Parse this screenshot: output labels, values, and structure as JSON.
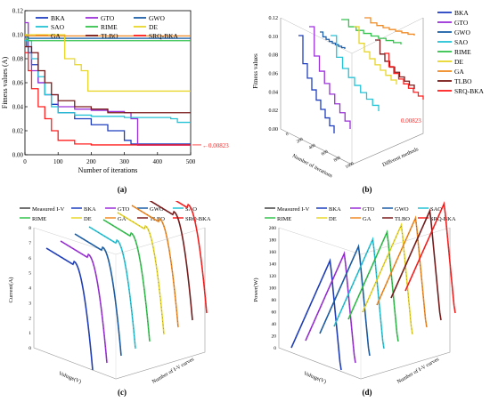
{
  "colors": {
    "BKA": "#1f3fbf",
    "GTO": "#9b30d9",
    "GWO": "#1c5fa8",
    "SAO": "#25c3d6",
    "RIME": "#33c24d",
    "DE": "#e8d62a",
    "GA": "#f08a24",
    "TLBO": "#7a1a1a",
    "SRQ-BKA": "#ff1f1f",
    "Measured I-V": "#555555"
  },
  "captions": {
    "a": "(a)",
    "b": "(b)",
    "c": "(c)",
    "d": "(d)"
  },
  "chart_data": [
    {
      "panel": "a",
      "type": "line",
      "xlabel": "Number of iterations",
      "ylabel": "Fitness values (A)",
      "xlim": [
        0,
        500
      ],
      "ylim": [
        0,
        0.12
      ],
      "xticks": [
        "0",
        "100",
        "200",
        "300",
        "400",
        "500"
      ],
      "yticks": [
        "0.00",
        "0.02",
        "0.04",
        "0.06",
        "0.08",
        "0.10",
        "0.12"
      ],
      "legend_position": "top-right",
      "annotation": "0.00823",
      "series": [
        {
          "name": "BKA",
          "x": [
            0,
            5,
            10,
            20,
            40,
            60,
            80,
            100,
            150,
            200,
            250,
            300,
            320,
            500
          ],
          "y": [
            0.098,
            0.09,
            0.085,
            0.075,
            0.06,
            0.05,
            0.042,
            0.035,
            0.03,
            0.025,
            0.02,
            0.012,
            0.009,
            0.009
          ]
        },
        {
          "name": "GTO",
          "x": [
            0,
            10,
            20,
            40,
            60,
            100,
            150,
            200,
            250,
            300,
            320,
            340,
            500
          ],
          "y": [
            0.11,
            0.09,
            0.07,
            0.06,
            0.05,
            0.04,
            0.038,
            0.037,
            0.036,
            0.035,
            0.03,
            0.008,
            0.008
          ]
        },
        {
          "name": "GWO",
          "x": [
            0,
            5,
            10,
            20,
            500
          ],
          "y": [
            0.1,
            0.098,
            0.097,
            0.097,
            0.097
          ]
        },
        {
          "name": "SAO",
          "x": [
            0,
            20,
            40,
            60,
            80,
            100,
            150,
            200,
            300,
            440,
            460,
            500
          ],
          "y": [
            0.095,
            0.08,
            0.065,
            0.05,
            0.04,
            0.035,
            0.033,
            0.032,
            0.031,
            0.03,
            0.027,
            0.027
          ]
        },
        {
          "name": "RIME",
          "x": [
            0,
            5,
            10,
            500
          ],
          "y": [
            0.1,
            0.096,
            0.095,
            0.095
          ]
        },
        {
          "name": "DE",
          "x": [
            0,
            100,
            120,
            150,
            170,
            190,
            500
          ],
          "y": [
            0.1,
            0.1,
            0.08,
            0.075,
            0.07,
            0.053,
            0.053
          ]
        },
        {
          "name": "GA",
          "x": [
            0,
            500
          ],
          "y": [
            0.099,
            0.099
          ]
        },
        {
          "name": "TLBO",
          "x": [
            0,
            20,
            40,
            60,
            80,
            100,
            150,
            200,
            250,
            500
          ],
          "y": [
            0.09,
            0.085,
            0.07,
            0.06,
            0.05,
            0.045,
            0.04,
            0.038,
            0.035,
            0.035
          ]
        },
        {
          "name": "SRQ-BKA",
          "x": [
            0,
            10,
            20,
            40,
            60,
            80,
            100,
            150,
            200,
            500
          ],
          "y": [
            0.085,
            0.07,
            0.055,
            0.04,
            0.03,
            0.02,
            0.012,
            0.009,
            0.0082,
            0.0082
          ]
        }
      ]
    },
    {
      "panel": "b",
      "type": "line",
      "ylabel": "Fitness values",
      "xlabel": "Number of iterations",
      "zlabel": "Different methods",
      "xticks": [
        "0",
        "200",
        "400",
        "600",
        "800",
        "1000"
      ],
      "yticks": [
        "0.00",
        "0.02",
        "0.04",
        "0.06",
        "0.08",
        "0.10",
        "0.12"
      ],
      "annotation": "0.00823",
      "legend_position": "right"
    },
    {
      "panel": "c",
      "type": "line",
      "ylabel": "Current(A)",
      "xlabel": "Voltage(V)",
      "zlabel": "Number of I-V curves",
      "yticks": [
        "0",
        "1",
        "2",
        "3",
        "4",
        "5",
        "6",
        "7",
        "8"
      ],
      "legend_position": "top",
      "legend": [
        "Measured I-V",
        "BKA",
        "GTO",
        "GWO",
        "SAO",
        "RIME",
        "DE",
        "GA",
        "TLBO",
        "SRQ-BKA"
      ],
      "curve_colors": [
        "#1f3fbf",
        "#9b30d9",
        "#1c5fa8",
        "#25c3d6",
        "#33c24d",
        "#e8d62a",
        "#f08a24",
        "#7a1a1a",
        "#ff1f1f"
      ]
    },
    {
      "panel": "d",
      "type": "line",
      "ylabel": "Power(W)",
      "xlabel": "Voltage(V)",
      "zlabel": "Number of I-V curves",
      "yticks": [
        "0",
        "20",
        "40",
        "60",
        "80",
        "100",
        "120",
        "140",
        "160",
        "180",
        "200"
      ],
      "legend_position": "top",
      "legend": [
        "Measured I-V",
        "BKA",
        "GTO",
        "GWO",
        "SAO",
        "RIME",
        "DE",
        "GA",
        "TLBO",
        "SRQ-BKA"
      ],
      "curve_colors": [
        "#1f3fbf",
        "#9b30d9",
        "#1c5fa8",
        "#25c3d6",
        "#33c24d",
        "#e8d62a",
        "#f08a24",
        "#7a1a1a",
        "#ff1f1f"
      ]
    }
  ]
}
